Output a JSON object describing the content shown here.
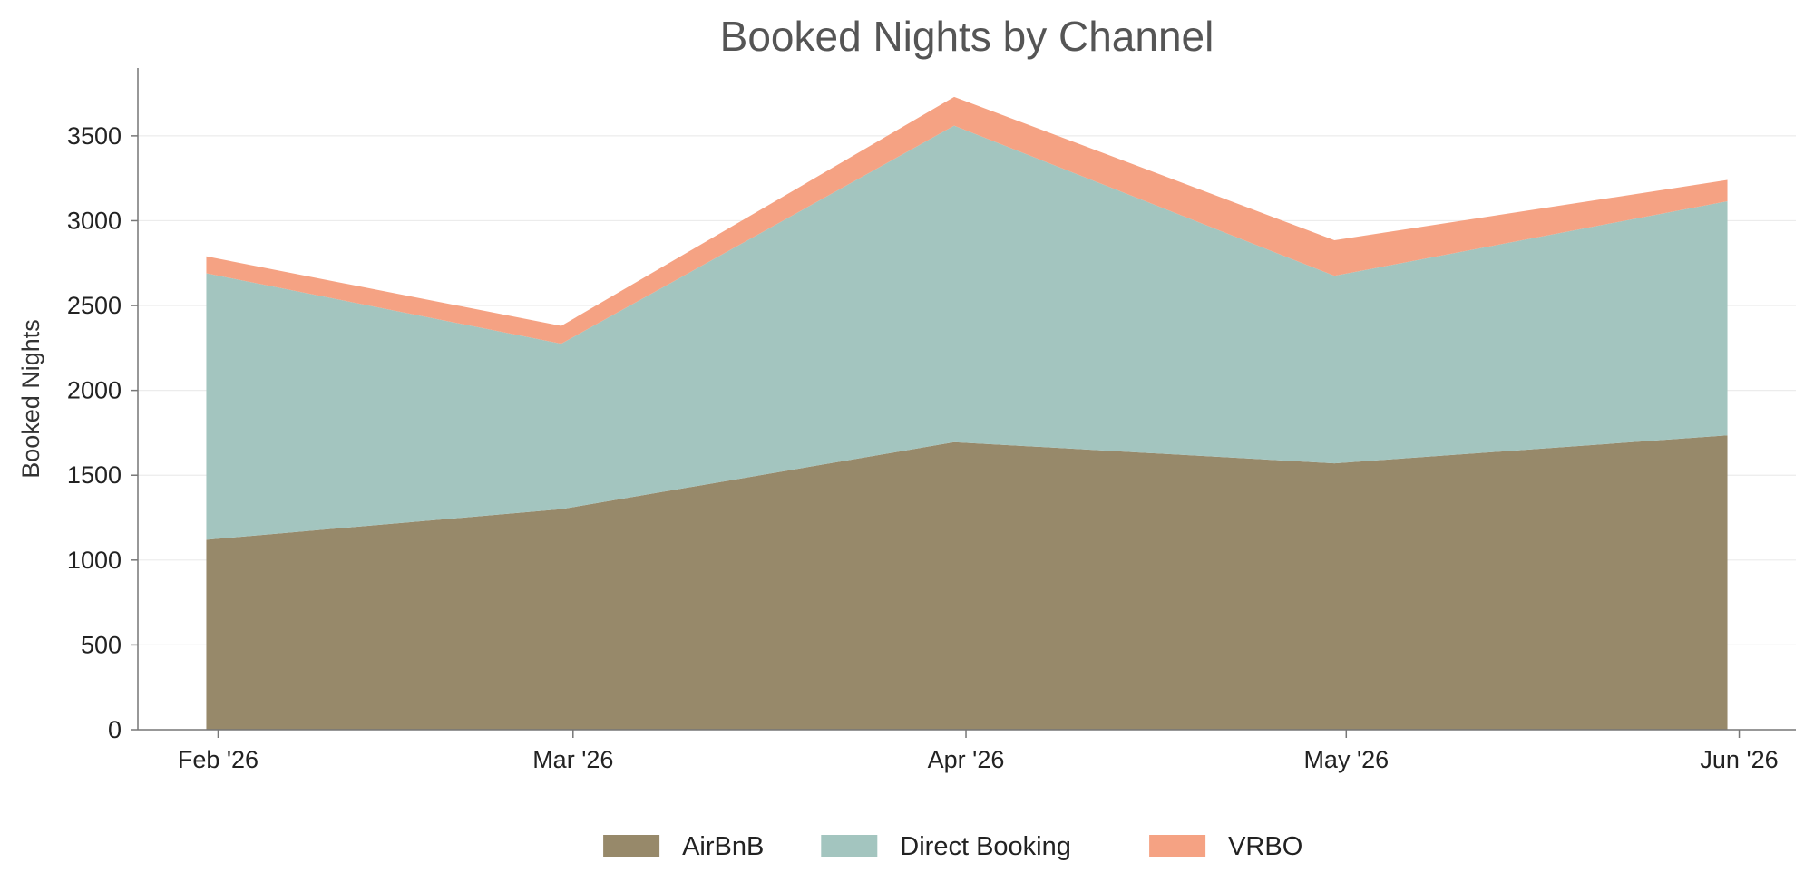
{
  "chart_data": {
    "type": "area",
    "stacked": true,
    "title": "Booked Nights by Channel",
    "xlabel": "",
    "ylabel": "Booked Nights",
    "x": [
      "2026-02-01",
      "2026-03-01",
      "2026-04-01",
      "2026-05-01",
      "2026-06-01"
    ],
    "x_tick_labels": [
      "Feb '26",
      "Mar '26",
      "Apr '26",
      "May '26",
      "Jun '26"
    ],
    "y_ticks": [
      0,
      500,
      1000,
      1500,
      2000,
      2500,
      3000,
      3500
    ],
    "ylim": [
      0,
      3900
    ],
    "grid": "horizontal",
    "legend_position": "bottom-center",
    "series": [
      {
        "name": "AirBnB",
        "values": [
          1120,
          1300,
          1695,
          1570,
          1735
        ],
        "color": "#97896a"
      },
      {
        "name": "Direct Booking",
        "values": [
          1570,
          975,
          1865,
          1105,
          1380
        ],
        "color": "#a3c5bf"
      },
      {
        "name": "VRBO",
        "values": [
          100,
          105,
          170,
          210,
          125
        ],
        "color": "#f5a283"
      }
    ]
  }
}
